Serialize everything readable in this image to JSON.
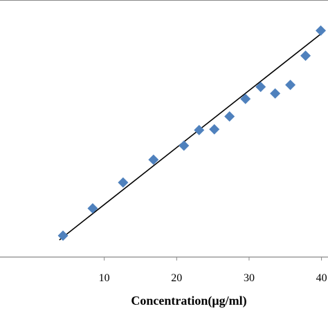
{
  "chart_data": {
    "type": "scatter",
    "title": "",
    "xlabel": "Concentration(μg/ml)",
    "ylabel": "",
    "xlim": [
      0,
      40
    ],
    "x_ticks": [
      {
        "value": 10,
        "label": "10"
      },
      {
        "value": 20,
        "label": "20"
      },
      {
        "value": 30,
        "label": "30"
      },
      {
        "value": 40,
        "label": "40"
      }
    ],
    "grid": false,
    "legend": "none",
    "marker": "diamond",
    "colors": {
      "marker": "#4f81bd",
      "trendline": "#000000",
      "axis": "#888888",
      "text": "#000000"
    },
    "series": [
      {
        "points": [
          [
            4.3,
            0.11
          ],
          [
            8.4,
            0.25
          ],
          [
            12.6,
            0.383
          ],
          [
            16.8,
            0.5
          ],
          [
            21.0,
            0.572
          ],
          [
            23.1,
            0.652
          ],
          [
            25.2,
            0.656
          ],
          [
            27.3,
            0.722
          ],
          [
            29.5,
            0.812
          ],
          [
            31.6,
            0.874
          ],
          [
            33.6,
            0.84
          ],
          [
            35.7,
            0.884
          ],
          [
            37.8,
            1.034
          ],
          [
            39.9,
            1.163
          ]
        ]
      }
    ],
    "trendline": {
      "type": "linear",
      "start": [
        3.8,
        0.088
      ],
      "end": [
        40.4,
        1.16
      ]
    }
  }
}
